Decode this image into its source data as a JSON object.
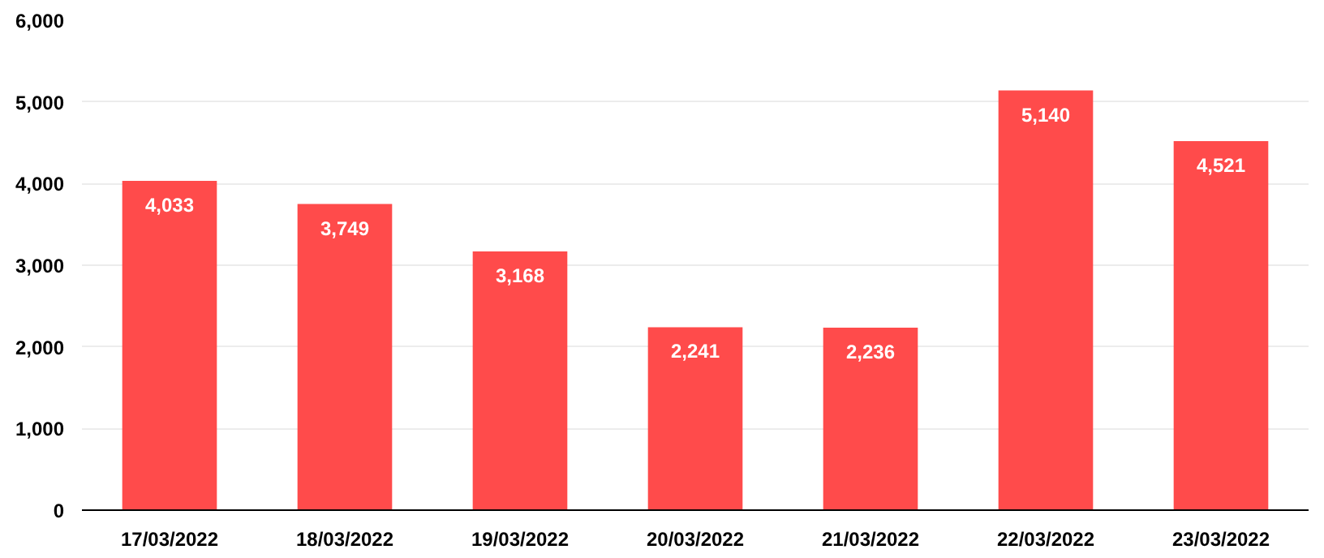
{
  "chart_data": {
    "type": "bar",
    "categories": [
      "17/03/2022",
      "18/03/2022",
      "19/03/2022",
      "20/03/2022",
      "21/03/2022",
      "22/03/2022",
      "23/03/2022"
    ],
    "values": [
      4033,
      3749,
      3168,
      2241,
      2236,
      5140,
      4521
    ],
    "color": "#ff4b4b",
    "ylim": [
      0,
      6000
    ],
    "yticks": [
      {
        "value": 0,
        "label": "0"
      },
      {
        "value": 1000,
        "label": "1,000"
      },
      {
        "value": 2000,
        "label": "2,000"
      },
      {
        "value": 3000,
        "label": "3,000"
      },
      {
        "value": 4000,
        "label": "4,000"
      },
      {
        "value": 5000,
        "label": "5,000"
      },
      {
        "value": 6000,
        "label": "6,000"
      }
    ],
    "value_labels": [
      "4,033",
      "3,749",
      "3,168",
      "2,241",
      "2,236",
      "5,140",
      "4,521"
    ],
    "grid": "y"
  }
}
